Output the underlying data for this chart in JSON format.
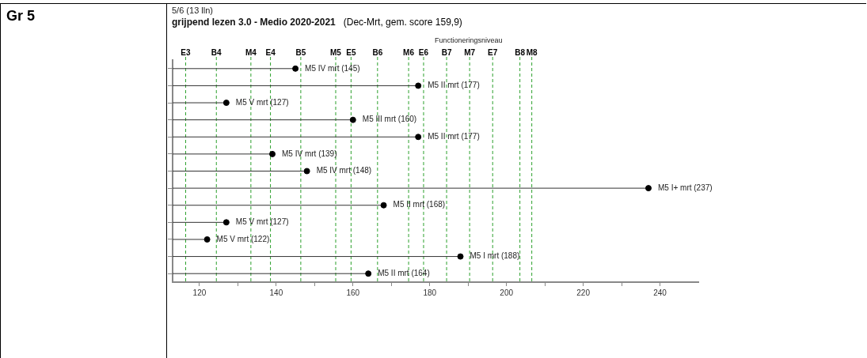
{
  "chart_data": {
    "type": "lollipop",
    "orientation": "horizontal",
    "title": "grijpend lezen 3.0 - Medio 2020-2021",
    "subtitle": "(Dec-Mrt, gem. score 159,9)",
    "annotations": [
      "5/6  (13 lln)",
      "Functioneringsniveau",
      "Gr 5"
    ],
    "categories": [
      null,
      null,
      null,
      null,
      null,
      null,
      null,
      null,
      null,
      null,
      null,
      null,
      null
    ],
    "values": [
      145,
      177,
      127,
      160,
      177,
      139,
      148,
      237,
      168,
      127,
      122,
      188,
      164
    ],
    "value_labels": [
      "M5 IV mrt (145)",
      "M5 II mrt (177)",
      "M5 V mrt (127)",
      "M5 III mrt (160)",
      "M5 II mrt (177)",
      "M5 IV mrt (139)",
      "M5 IV mrt (148)",
      "M5 I+ mrt (237)",
      "M5 II mrt (168)",
      "M5 V mrt (127)",
      "M5 V mrt (122)",
      "M5 I mrt (188)",
      "M5 II mrt (164)"
    ],
    "color": "#000000",
    "marker": "circle",
    "grid": false,
    "legend": false,
    "tick_labels": "x",
    "xlim": [
      113,
      250
    ],
    "xticks": [
      120,
      {
        "value": 130,
        "label": null
      },
      140,
      {
        "value": 150,
        "label": null
      },
      160,
      {
        "value": 170,
        "label": null
      },
      180,
      {
        "value": 190,
        "label": null
      },
      200,
      {
        "value": 210,
        "label": null
      },
      220,
      {
        "value": 230,
        "label": null
      },
      240
    ],
    "ref_lines": [
      {
        "axis": "x",
        "value": 116.4,
        "label": "E3",
        "color": "#2ca02c",
        "line_style": "dashed"
      },
      {
        "axis": "x",
        "value": 124.4,
        "label": "B4",
        "color": "#2ca02c",
        "line_style": "dashed"
      },
      {
        "axis": "x",
        "value": 133.4,
        "label": "M4",
        "color": "#2ca02c",
        "line_style": "dashed"
      },
      {
        "axis": "x",
        "value": 138.5,
        "label": "E4",
        "color": "#2ca02c",
        "line_style": "dashed"
      },
      {
        "axis": "x",
        "value": 146.4,
        "label": "B5",
        "color": "#2ca02c",
        "line_style": "dashed"
      },
      {
        "axis": "x",
        "value": 155.5,
        "label": "M5",
        "color": "#2ca02c",
        "line_style": "dashed"
      },
      {
        "axis": "x",
        "value": 159.5,
        "label": "E5",
        "color": "#2ca02c",
        "line_style": "dashed"
      },
      {
        "axis": "x",
        "value": 166.4,
        "label": "B6",
        "color": "#2ca02c",
        "line_style": "dashed"
      },
      {
        "axis": "x",
        "value": 174.5,
        "label": "M6",
        "color": "#2ca02c",
        "line_style": "dashed"
      },
      {
        "axis": "x",
        "value": 178.4,
        "label": "E6",
        "color": "#2ca02c",
        "line_style": "dashed"
      },
      {
        "axis": "x",
        "value": 184.4,
        "label": "B7",
        "color": "#2ca02c",
        "line_style": "dashed"
      },
      {
        "axis": "x",
        "value": 190.4,
        "label": "M7",
        "color": "#2ca02c",
        "line_style": "dashed"
      },
      {
        "axis": "x",
        "value": 196.4,
        "label": "E7",
        "color": "#2ca02c",
        "line_style": "dashed"
      },
      {
        "axis": "x",
        "value": 203.5,
        "label": "B8",
        "color": "#2ca02c",
        "line_style": "dashed"
      },
      {
        "axis": "x",
        "value": 206.6,
        "label": "M8",
        "color": "#2ca02c",
        "line_style": "dashed"
      }
    ]
  }
}
